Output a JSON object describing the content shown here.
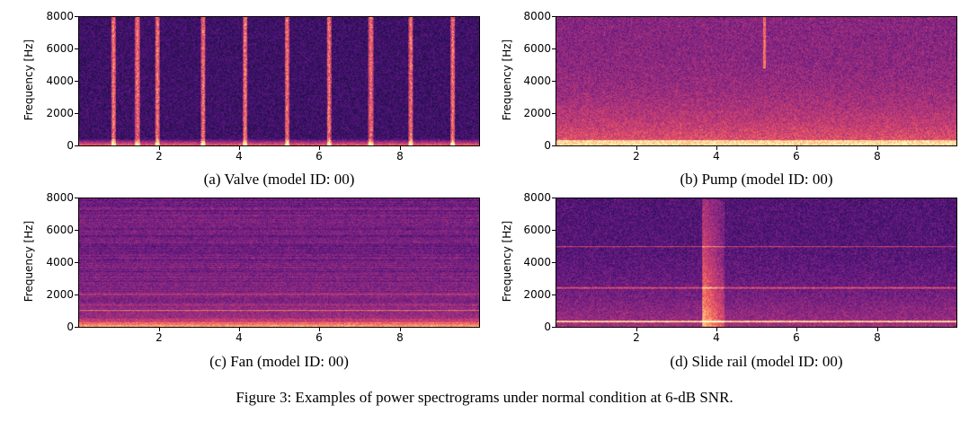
{
  "figure_caption": "Figure 3: Examples of power spectrograms under normal condition at 6-dB SNR.",
  "colormap": [
    "#000004",
    "#1c1044",
    "#4f127b",
    "#812581",
    "#b5367a",
    "#e55064",
    "#fb8761",
    "#fec287",
    "#fcfdbf"
  ],
  "chart_data": [
    {
      "type": "heatmap",
      "caption": "(a) Valve (model ID: 00)",
      "ylabel": "Frequency [Hz]",
      "xlabel": "",
      "xlim": [
        0,
        10
      ],
      "ylim": [
        0,
        8000
      ],
      "xticks": [
        "2",
        "4",
        "6",
        "8"
      ],
      "yticks": [
        "0",
        "2000",
        "4000",
        "6000",
        "8000"
      ],
      "xtick_values": [
        2,
        4,
        6,
        8
      ],
      "ytick_values": [
        0,
        2000,
        4000,
        6000,
        8000
      ],
      "pattern": "valve"
    },
    {
      "type": "heatmap",
      "caption": "(b) Pump (model ID: 00)",
      "ylabel": "Frequency [Hz]",
      "xlabel": "",
      "xlim": [
        0,
        10
      ],
      "ylim": [
        0,
        8000
      ],
      "xticks": [
        "2",
        "4",
        "6",
        "8"
      ],
      "yticks": [
        "0",
        "2000",
        "4000",
        "6000",
        "8000"
      ],
      "xtick_values": [
        2,
        4,
        6,
        8
      ],
      "ytick_values": [
        0,
        2000,
        4000,
        6000,
        8000
      ],
      "pattern": "pump"
    },
    {
      "type": "heatmap",
      "caption": "(c) Fan (model ID: 00)",
      "ylabel": "Frequency [Hz]",
      "xlabel": "",
      "xlim": [
        0,
        10
      ],
      "ylim": [
        0,
        8000
      ],
      "xticks": [
        "2",
        "4",
        "6",
        "8"
      ],
      "yticks": [
        "0",
        "2000",
        "4000",
        "6000",
        "8000"
      ],
      "xtick_values": [
        2,
        4,
        6,
        8
      ],
      "ytick_values": [
        0,
        2000,
        4000,
        6000,
        8000
      ],
      "pattern": "fan"
    },
    {
      "type": "heatmap",
      "caption": "(d) Slide rail (model ID: 00)",
      "ylabel": "Frequency [Hz]",
      "xlabel": "",
      "xlim": [
        0,
        10
      ],
      "ylim": [
        0,
        8000
      ],
      "xticks": [
        "2",
        "4",
        "6",
        "8"
      ],
      "yticks": [
        "0",
        "2000",
        "4000",
        "6000",
        "8000"
      ],
      "xtick_values": [
        2,
        4,
        6,
        8
      ],
      "ytick_values": [
        0,
        2000,
        4000,
        6000,
        8000
      ],
      "pattern": "slide_rail"
    }
  ]
}
